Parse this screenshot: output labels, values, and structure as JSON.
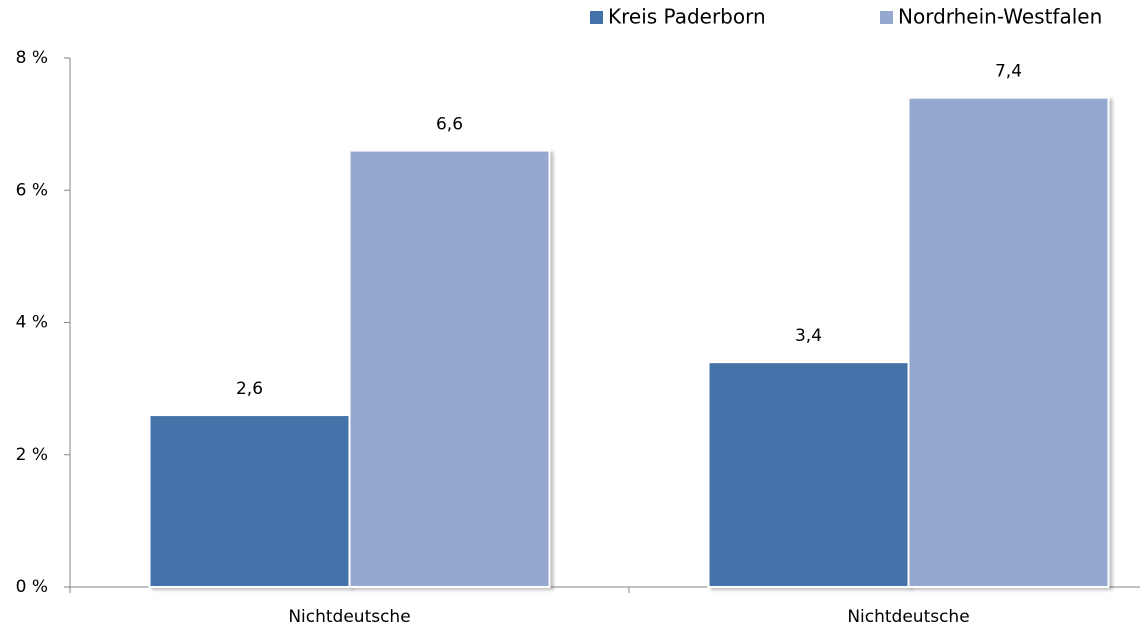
{
  "chart_data": {
    "type": "bar",
    "categories": [
      "Nichtdeutsche",
      "Nichtdeutsche"
    ],
    "series": [
      {
        "name": "Kreis Paderborn",
        "color": "#4472a8",
        "values": [
          2.6,
          3.4
        ],
        "value_labels": [
          "2,6",
          "3,4"
        ]
      },
      {
        "name": "Nordrhein-Westfalen",
        "color": "#95a9d0",
        "values": [
          6.6,
          7.4
        ],
        "value_labels": [
          "6,6",
          "7,4"
        ]
      }
    ],
    "ylim": [
      0,
      8
    ],
    "yticks": [
      {
        "value": 0,
        "label": "0 %"
      },
      {
        "value": 2,
        "label": "2 %"
      },
      {
        "value": 4,
        "label": "4 %"
      },
      {
        "value": 6,
        "label": "6 %"
      },
      {
        "value": 8,
        "label": "8 %"
      }
    ],
    "legend": "top-right"
  }
}
